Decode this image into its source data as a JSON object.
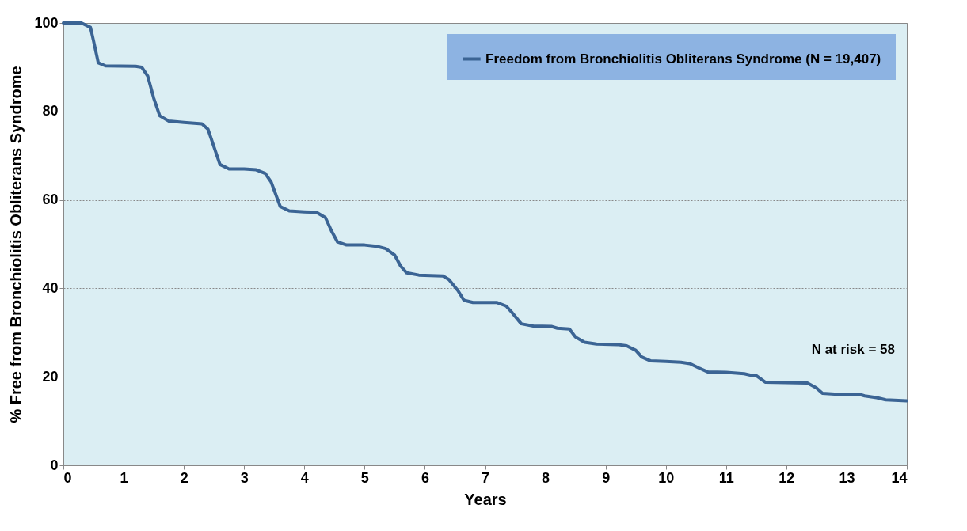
{
  "chart_data": {
    "type": "line",
    "xlabel": "Years",
    "ylabel": "% Free from Bronchiolitis Obliterans Syndrome",
    "xlim": [
      0,
      14
    ],
    "xticks": [
      0,
      1,
      2,
      3,
      4,
      5,
      6,
      7,
      8,
      9,
      10,
      11,
      12,
      13,
      14
    ],
    "ylim": [
      0,
      100
    ],
    "yticks": [
      0,
      20,
      40,
      60,
      80,
      100
    ],
    "grid": "y",
    "legend": "top right",
    "line_style": "solid",
    "marker": "none",
    "annotations": [
      "N at risk = 58"
    ],
    "series": [
      {
        "name": "Freedom from Bronchiolitis Obliterans Syndrome (N = 19,407)",
        "color": "#3b6494",
        "x": [
          0,
          0.3,
          0.45,
          0.5,
          0.58,
          0.7,
          1.2,
          1.3,
          1.4,
          1.5,
          1.6,
          1.75,
          2.0,
          2.3,
          2.4,
          2.5,
          2.6,
          2.75,
          3.0,
          3.2,
          3.35,
          3.45,
          3.6,
          3.75,
          4.0,
          4.2,
          4.35,
          4.45,
          4.55,
          4.7,
          5.0,
          5.2,
          5.35,
          5.5,
          5.6,
          5.7,
          5.9,
          6.3,
          6.4,
          6.55,
          6.65,
          6.8,
          7.2,
          7.35,
          7.45,
          7.6,
          7.8,
          8.1,
          8.2,
          8.4,
          8.5,
          8.65,
          8.85,
          9.2,
          9.35,
          9.5,
          9.6,
          9.75,
          10.0,
          10.25,
          10.4,
          10.55,
          10.7,
          11.0,
          11.3,
          11.4,
          11.5,
          11.65,
          12.0,
          12.35,
          12.5,
          12.6,
          12.8,
          13.2,
          13.3,
          13.5,
          13.65,
          14
        ],
        "values": [
          100,
          100,
          99,
          96,
          91,
          90.3,
          90.2,
          90,
          88,
          83,
          79,
          77.8,
          77.5,
          77.2,
          76,
          72,
          68,
          67,
          67,
          66.8,
          66,
          64,
          58.5,
          57.5,
          57.3,
          57.2,
          56,
          53,
          50.5,
          49.8,
          49.8,
          49.5,
          49,
          47.5,
          45,
          43.5,
          43,
          42.8,
          42,
          39.5,
          37.3,
          36.8,
          36.8,
          36,
          34.5,
          32,
          31.5,
          31.4,
          31,
          30.8,
          29,
          27.8,
          27.4,
          27.3,
          27,
          26,
          24.5,
          23.6,
          23.5,
          23.3,
          23,
          22,
          21.1,
          21,
          20.7,
          20.4,
          20.3,
          18.8,
          18.7,
          18.6,
          17.5,
          16.3,
          16.1,
          16.1,
          15.7,
          15.3,
          14.8,
          14.6
        ]
      }
    ]
  }
}
